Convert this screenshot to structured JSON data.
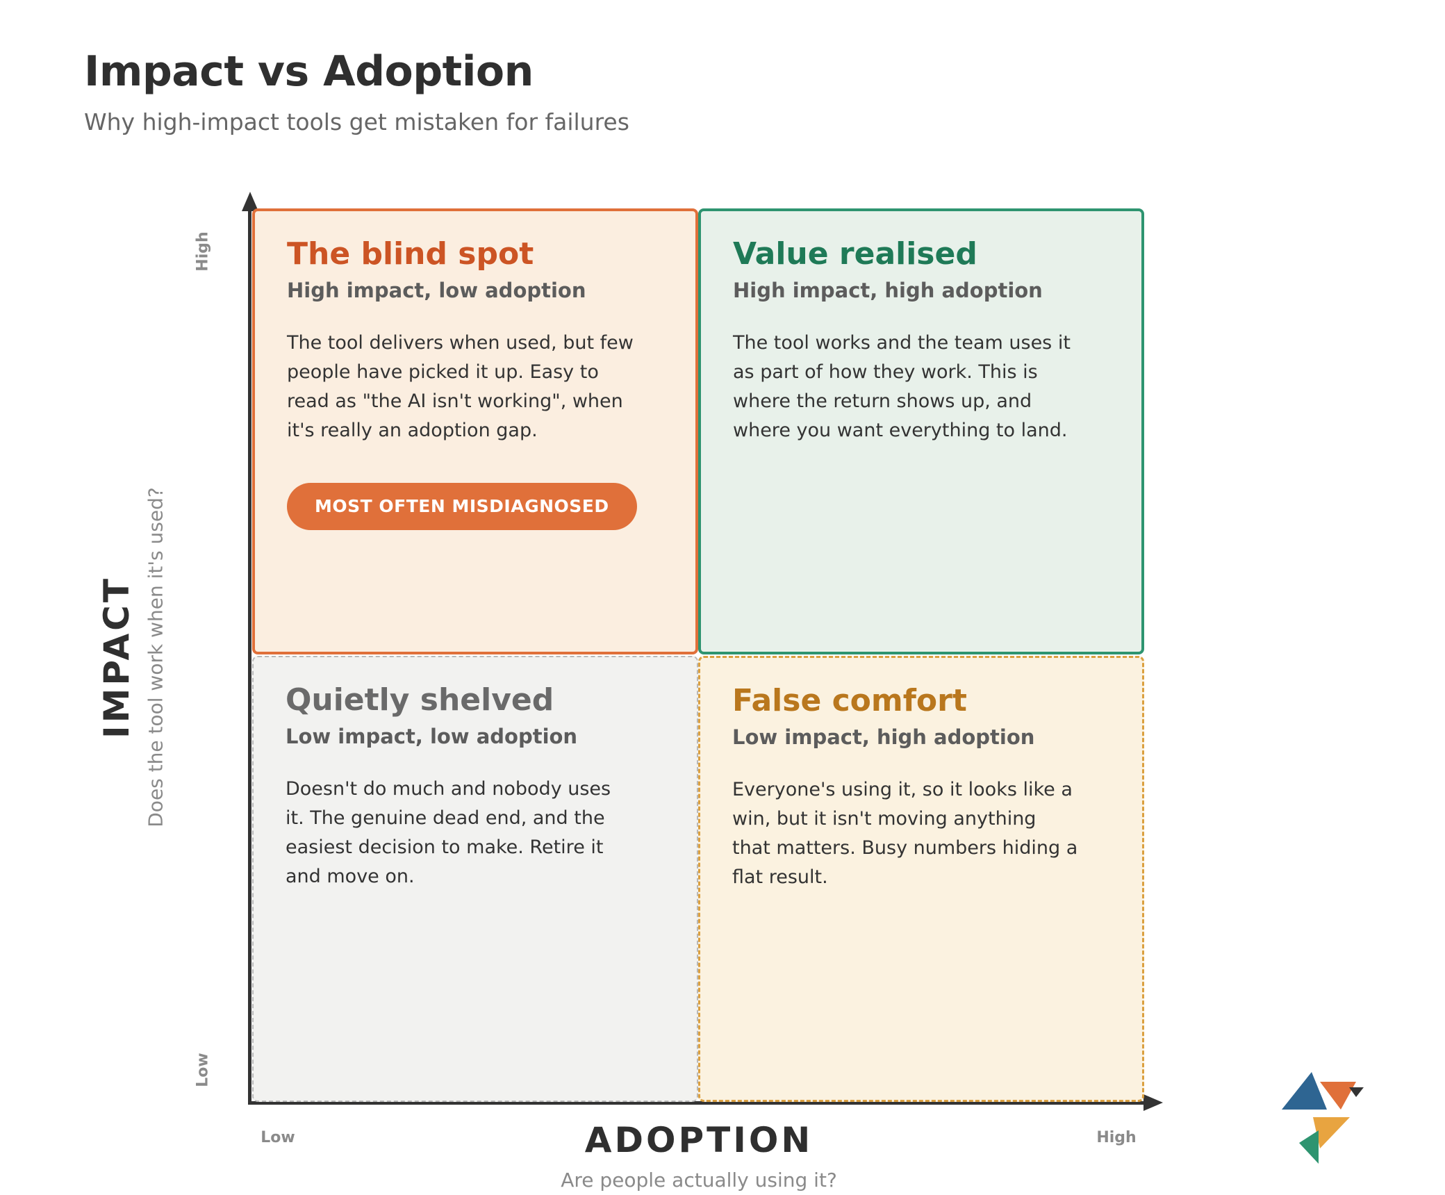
{
  "header": {
    "title": "Impact vs Adoption",
    "subtitle": "Why high-impact tools get mistaken for failures"
  },
  "axes": {
    "y": {
      "label": "IMPACT",
      "sublabel": "Does the tool work when it's used?",
      "high": "High",
      "low": "Low"
    },
    "x": {
      "label": "ADOPTION",
      "sublabel": "Are people actually using it?",
      "low": "Low",
      "high": "High"
    }
  },
  "quadrants": {
    "blind_spot": {
      "title": "The blind spot",
      "subtitle": "High impact, low adoption",
      "body": "The tool delivers when used, but few people have picked it up. Easy to read as \"the AI isn't working\", when it's really an adoption gap.",
      "badge": "MOST OFTEN MISDIAGNOSED",
      "accent": "#e0703a"
    },
    "value_realised": {
      "title": "Value realised",
      "subtitle": "High impact, high adoption",
      "body": "The tool works and the team uses it as part of how they work. This is where the return shows up, and where you want everything to land.",
      "accent": "#2e9470"
    },
    "quietly_shelved": {
      "title": "Quietly shelved",
      "subtitle": "Low impact, low adoption",
      "body": "Doesn't do much and nobody uses it. The genuine dead end, and the easiest decision to make. Retire it and move on.",
      "accent": "#6a6a6a"
    },
    "false_comfort": {
      "title": "False comfort",
      "subtitle": "Low impact, high adoption",
      "body": "Everyone's using it, so it looks like a win, but it isn't moving anything that matters. Busy numbers hiding a flat result.",
      "accent": "#dba040"
    }
  },
  "logo": {
    "icon": "origami-bird-logo-icon"
  }
}
